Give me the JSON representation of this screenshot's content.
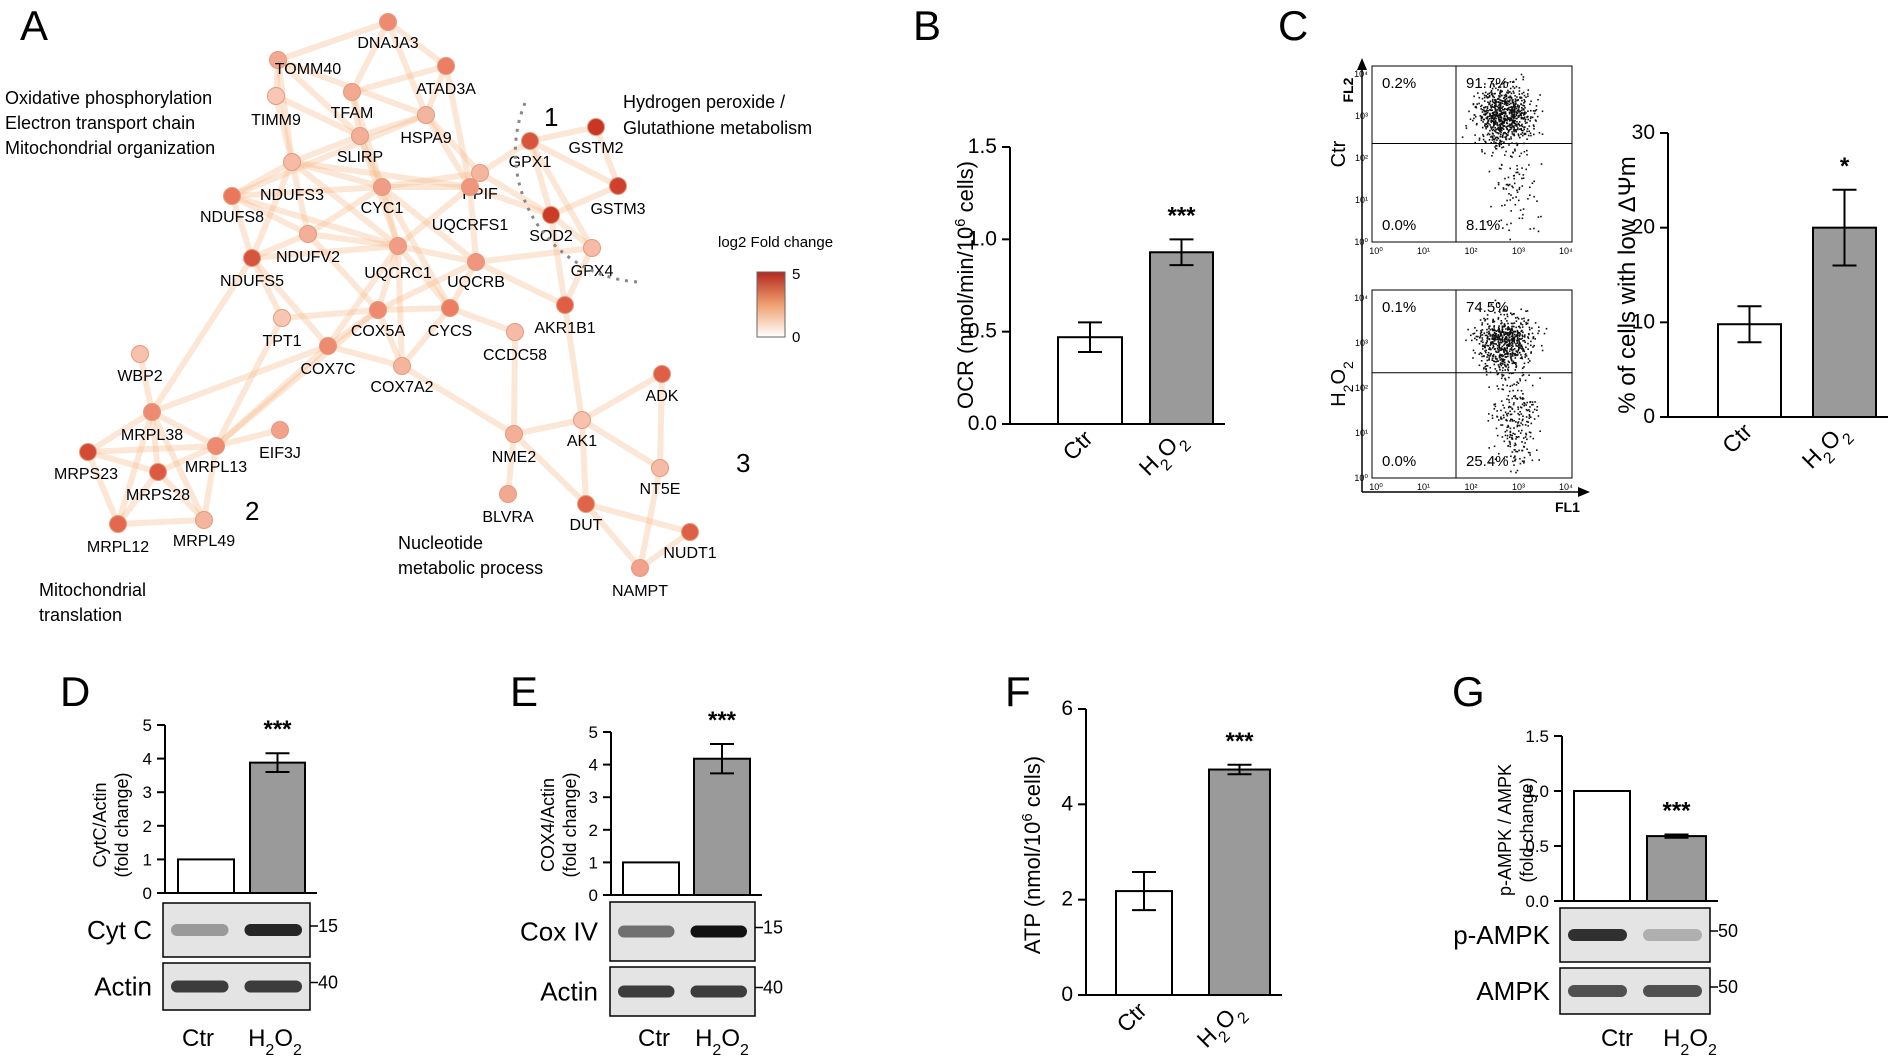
{
  "panels": {
    "A": {
      "letter": "A",
      "legend_title": "log2 Fold change",
      "legend_max": "5",
      "legend_min": "0"
    },
    "B": {
      "letter": "B"
    },
    "C": {
      "letter": "C"
    },
    "D": {
      "letter": "D"
    },
    "E": {
      "letter": "E"
    },
    "F": {
      "letter": "F"
    },
    "G": {
      "letter": "G"
    }
  },
  "network": {
    "nodes": [
      {
        "id": "DNAJA3",
        "label": "DNAJA3",
        "fc": 3.0
      },
      {
        "id": "TOMM40",
        "label": "TOMM40",
        "fc": 2.5
      },
      {
        "id": "ATAD3A",
        "label": "ATAD3A",
        "fc": 3.2
      },
      {
        "id": "TIMM9",
        "label": "TIMM9",
        "fc": 2.0
      },
      {
        "id": "TFAM",
        "label": "TFAM",
        "fc": 2.5
      },
      {
        "id": "HSPA9",
        "label": "HSPA9",
        "fc": 2.3
      },
      {
        "id": "SLIRP",
        "label": "SLIRP",
        "fc": 2.4
      },
      {
        "id": "GPX1",
        "label": "GPX1",
        "fc": 4.0
      },
      {
        "id": "GSTM2",
        "label": "GSTM2",
        "fc": 4.6
      },
      {
        "id": "PPIF",
        "label": "PPIF",
        "fc": 2.3
      },
      {
        "id": "NDUFS3",
        "label": "NDUFS3",
        "fc": 2.2
      },
      {
        "id": "CYC1",
        "label": "CYC1",
        "fc": 2.7
      },
      {
        "id": "UQCRFS1",
        "label": "UQCRFS1",
        "fc": 2.8
      },
      {
        "id": "GSTM3",
        "label": "GSTM3",
        "fc": 4.4
      },
      {
        "id": "NDUFS8",
        "label": "NDUFS8",
        "fc": 3.3
      },
      {
        "id": "SOD2",
        "label": "SOD2",
        "fc": 4.5
      },
      {
        "id": "NDUFV2",
        "label": "NDUFV2",
        "fc": 2.4
      },
      {
        "id": "NDUFS5",
        "label": "NDUFS5",
        "fc": 4.0
      },
      {
        "id": "UQCRC1",
        "label": "UQCRC1",
        "fc": 2.7
      },
      {
        "id": "UQCRB",
        "label": "UQCRB",
        "fc": 2.8
      },
      {
        "id": "GPX4",
        "label": "GPX4",
        "fc": 2.2
      },
      {
        "id": "TPT1",
        "label": "TPT1",
        "fc": 2.0
      },
      {
        "id": "COX5A",
        "label": "COX5A",
        "fc": 3.0
      },
      {
        "id": "CYCS",
        "label": "CYCS",
        "fc": 3.2
      },
      {
        "id": "AKR1B1",
        "label": "AKR1B1",
        "fc": 3.8
      },
      {
        "id": "COX7C",
        "label": "COX7C",
        "fc": 3.0
      },
      {
        "id": "CCDC58",
        "label": "CCDC58",
        "fc": 2.2
      },
      {
        "id": "COX7A2",
        "label": "COX7A2",
        "fc": 2.3
      },
      {
        "id": "WBP2",
        "label": "WBP2",
        "fc": 2.1
      },
      {
        "id": "ADK",
        "label": "ADK",
        "fc": 3.8
      },
      {
        "id": "MRPL38",
        "label": "MRPL38",
        "fc": 3.0
      },
      {
        "id": "EIF3J",
        "label": "EIF3J",
        "fc": 2.6
      },
      {
        "id": "MRPS23",
        "label": "MRPS23",
        "fc": 4.2
      },
      {
        "id": "MRPL13",
        "label": "MRPL13",
        "fc": 3.0
      },
      {
        "id": "MRPS28",
        "label": "MRPS28",
        "fc": 3.9
      },
      {
        "id": "AK1",
        "label": "AK1",
        "fc": 2.1
      },
      {
        "id": "NME2",
        "label": "NME2",
        "fc": 2.4
      },
      {
        "id": "NT5E",
        "label": "NT5E",
        "fc": 2.2
      },
      {
        "id": "BLVRA",
        "label": "BLVRA",
        "fc": 2.5
      },
      {
        "id": "DUT",
        "label": "DUT",
        "fc": 3.7
      },
      {
        "id": "MRPL12",
        "label": "MRPL12",
        "fc": 3.6
      },
      {
        "id": "MRPL49",
        "label": "MRPL49",
        "fc": 2.3
      },
      {
        "id": "NUDT1",
        "label": "NUDT1",
        "fc": 3.8
      },
      {
        "id": "NAMPT",
        "label": "NAMPT",
        "fc": 2.6
      }
    ],
    "annotations": [
      {
        "name": "annot-oxphos-1",
        "text": "Oxidative phosphorylation"
      },
      {
        "name": "annot-oxphos-2",
        "text": "Electron transport chain"
      },
      {
        "name": "annot-oxphos-3",
        "text": "Mitochondrial organization"
      },
      {
        "name": "annot-h2o2-1",
        "text": "Hydrogen peroxide /"
      },
      {
        "name": "annot-h2o2-2",
        "text": "Glutathione metabolism"
      },
      {
        "name": "annot-mito-1",
        "text": "Mitochondrial"
      },
      {
        "name": "annot-mito-2",
        "text": "translation"
      },
      {
        "name": "annot-nuc-1",
        "text": "Nucleotide"
      },
      {
        "name": "annot-nuc-2",
        "text": "metabolic process"
      }
    ],
    "clusters": [
      "1",
      "2",
      "3"
    ]
  },
  "groups": {
    "ctr": "Ctr",
    "h2o2": "H2O2"
  },
  "chart_data": [
    {
      "panel": "B",
      "type": "bar",
      "categories": [
        "Ctr",
        "H2O2"
      ],
      "values": [
        0.47,
        0.93
      ],
      "errors": [
        0.08,
        0.07
      ],
      "ylabel": "OCR (nmol/min/10^6 cells)",
      "ylim": [
        0,
        1.5
      ],
      "yticks": [
        "0.0",
        "0.5",
        "1.0",
        "1.5"
      ],
      "significance": "***"
    },
    {
      "panel": "C",
      "type": "bar",
      "categories": [
        "Ctr",
        "H2O2"
      ],
      "values": [
        9.8,
        20.0
      ],
      "errors": [
        1.9,
        4.0
      ],
      "ylabel": "% of cells with low ΔΨm",
      "ylim": [
        0,
        30
      ],
      "yticks": [
        "0",
        "10",
        "20",
        "30"
      ],
      "significance": "*"
    },
    {
      "panel": "D",
      "type": "bar",
      "categories": [
        "Ctr",
        "H2O2"
      ],
      "values": [
        1.0,
        3.88
      ],
      "errors": [
        0,
        0.28
      ],
      "ylabel": "CytC/Actin (fold change)",
      "ylim": [
        0,
        5
      ],
      "yticks": [
        "0",
        "1",
        "2",
        "3",
        "4",
        "5"
      ],
      "significance": "***"
    },
    {
      "panel": "E",
      "type": "bar",
      "categories": [
        "Ctr",
        "H2O2"
      ],
      "values": [
        1.0,
        4.18
      ],
      "errors": [
        0,
        0.45
      ],
      "ylabel": "COX4/Actin (fold change)",
      "ylim": [
        0,
        5
      ],
      "yticks": [
        "0",
        "1",
        "2",
        "3",
        "4",
        "5"
      ],
      "significance": "***"
    },
    {
      "panel": "F",
      "type": "bar",
      "categories": [
        "Ctr",
        "H2O2"
      ],
      "values": [
        2.18,
        4.73
      ],
      "errors": [
        0.4,
        0.1
      ],
      "ylabel": "ATP (nmol/10^6 cells)",
      "ylim": [
        0,
        6
      ],
      "yticks": [
        "0",
        "2",
        "4",
        "6"
      ],
      "significance": "***"
    },
    {
      "panel": "G",
      "type": "bar",
      "categories": [
        "Ctr",
        "H2O2"
      ],
      "values": [
        1.0,
        0.59
      ],
      "errors": [
        0,
        0.015
      ],
      "ylabel": "p-AMPK / AMPK (fold change)",
      "ylim": [
        0,
        1.5
      ],
      "yticks": [
        "0.0",
        "0.5",
        "1.0",
        "1.5"
      ],
      "significance": "***"
    }
  ],
  "flow_cytometry": {
    "x_axis": "FL1",
    "y_axis": "FL2",
    "ticks": [
      "10⁰",
      "10¹",
      "10²",
      "10³",
      "10⁴"
    ],
    "plots": [
      {
        "name": "Ctr",
        "row_label": "Ctr",
        "q_ul": "0.2%",
        "q_ur": "91.7%",
        "q_ll": "0.0%",
        "q_lr": "8.1%"
      },
      {
        "name": "H2O2",
        "row_label": "H2O2",
        "q_ul": "0.1%",
        "q_ur": "74.5%",
        "q_ll": "0.0%",
        "q_lr": "25.4%"
      }
    ]
  },
  "blots": {
    "D": [
      {
        "label": "Cyt C",
        "mw": "15"
      },
      {
        "label": "Actin",
        "mw": "40"
      }
    ],
    "E": [
      {
        "label": "Cox IV",
        "mw": "15"
      },
      {
        "label": "Actin",
        "mw": "40"
      }
    ],
    "G": [
      {
        "label": "p-AMPK",
        "mw": "50"
      },
      {
        "label": "AMPK",
        "mw": "50"
      }
    ]
  },
  "colors": {
    "bar_ctr": "#ffffff",
    "bar_h2o2": "#9a9a9a",
    "edge": "#f6b98a",
    "node_low": "#f9d3c2",
    "node_high": "#c8321e"
  }
}
